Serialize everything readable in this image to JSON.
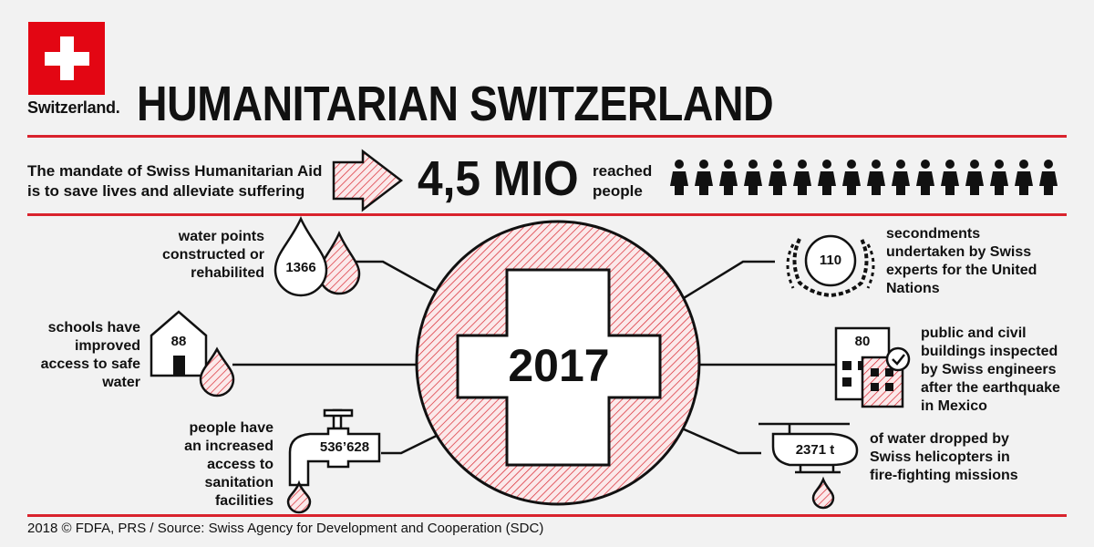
{
  "logo": {
    "text": "Switzerland."
  },
  "title": "HUMANITARIAN SWITZERLAND",
  "mandate": {
    "line1": "The mandate of Swiss Humanitarian Aid",
    "line2": "is to save lives and alleviate suffering"
  },
  "reach": {
    "value": "4,5 MIO",
    "label_line1": "reached",
    "label_line2": "people",
    "people_icon_count": 16
  },
  "center": {
    "year": "2017"
  },
  "stats": {
    "water_points": {
      "value": "1366",
      "l1": "water points",
      "l2": "constructed or",
      "l3": "rehabilited"
    },
    "schools": {
      "value": "88",
      "l1": "schools have",
      "l2": "improved",
      "l3": "access to safe",
      "l4": "water"
    },
    "sanitation": {
      "value": "536’628",
      "l1": "people have",
      "l2": "an increased",
      "l3": "access to",
      "l4": "sanitation",
      "l5": "facilities"
    },
    "secondments": {
      "value": "110",
      "l1": "secondments",
      "l2": "undertaken by Swiss",
      "l3": "experts for the United",
      "l4": "Nations"
    },
    "buildings": {
      "value": "80",
      "l1": "public and civil",
      "l2": "buildings inspected",
      "l3": "by Swiss engineers",
      "l4": "after the earthquake",
      "l5": "in Mexico"
    },
    "water_dropped": {
      "value": "2371 t",
      "l1": "of water dropped by",
      "l2": "Swiss helicopters in",
      "l3": "fire-fighting missions"
    }
  },
  "footer": "2018 © FDFA, PRS / Source: Swiss Agency for Development and Cooperation (SDC)",
  "colors": {
    "red": "#e30613",
    "rule": "#d9232d",
    "background": "#f2f2f2",
    "ink": "#111111"
  }
}
